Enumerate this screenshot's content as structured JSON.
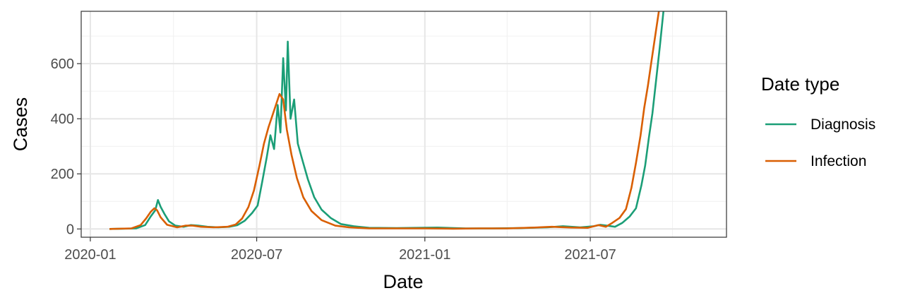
{
  "chart_data": {
    "type": "line",
    "xlabel": "Date",
    "ylabel": "Cases",
    "x_ticks": [
      "2020-01",
      "2020-07",
      "2021-01",
      "2021-07"
    ],
    "y_ticks": [
      0,
      200,
      400,
      600
    ],
    "xlim": [
      "2019-12-22",
      "2021-11-27"
    ],
    "ylim": [
      -30,
      790
    ],
    "grid": true,
    "legend": {
      "title": "Date type",
      "position": "right"
    },
    "series": [
      {
        "name": "Diagnosis",
        "color": "#1b9e77",
        "points": [
          [
            "2020-01-22",
            0
          ],
          [
            "2020-02-20",
            2
          ],
          [
            "2020-03-01",
            14
          ],
          [
            "2020-03-07",
            45
          ],
          [
            "2020-03-12",
            68
          ],
          [
            "2020-03-15",
            105
          ],
          [
            "2020-03-18",
            80
          ],
          [
            "2020-03-22",
            55
          ],
          [
            "2020-03-27",
            28
          ],
          [
            "2020-04-03",
            12
          ],
          [
            "2020-04-12",
            8
          ],
          [
            "2020-04-20",
            14
          ],
          [
            "2020-04-28",
            12
          ],
          [
            "2020-05-08",
            8
          ],
          [
            "2020-05-20",
            6
          ],
          [
            "2020-06-01",
            8
          ],
          [
            "2020-06-10",
            14
          ],
          [
            "2020-06-18",
            30
          ],
          [
            "2020-06-26",
            58
          ],
          [
            "2020-07-02",
            85
          ],
          [
            "2020-07-07",
            170
          ],
          [
            "2020-07-12",
            260
          ],
          [
            "2020-07-16",
            340
          ],
          [
            "2020-07-20",
            290
          ],
          [
            "2020-07-24",
            450
          ],
          [
            "2020-07-27",
            350
          ],
          [
            "2020-07-30",
            620
          ],
          [
            "2020-08-02",
            430
          ],
          [
            "2020-08-04",
            680
          ],
          [
            "2020-08-07",
            400
          ],
          [
            "2020-08-11",
            470
          ],
          [
            "2020-08-15",
            310
          ],
          [
            "2020-08-20",
            250
          ],
          [
            "2020-08-26",
            180
          ],
          [
            "2020-09-02",
            115
          ],
          [
            "2020-09-10",
            70
          ],
          [
            "2020-09-20",
            40
          ],
          [
            "2020-10-01",
            18
          ],
          [
            "2020-10-15",
            10
          ],
          [
            "2020-11-01",
            4
          ],
          [
            "2020-12-01",
            3
          ],
          [
            "2021-01-15",
            5
          ],
          [
            "2021-02-15",
            2
          ],
          [
            "2021-03-15",
            2
          ],
          [
            "2021-04-15",
            3
          ],
          [
            "2021-05-15",
            6
          ],
          [
            "2021-06-01",
            10
          ],
          [
            "2021-06-20",
            6
          ],
          [
            "2021-07-05",
            10
          ],
          [
            "2021-07-12",
            15
          ],
          [
            "2021-07-19",
            12
          ],
          [
            "2021-07-28",
            8
          ],
          [
            "2021-08-05",
            22
          ],
          [
            "2021-08-13",
            45
          ],
          [
            "2021-08-20",
            75
          ],
          [
            "2021-08-26",
            160
          ],
          [
            "2021-08-30",
            230
          ],
          [
            "2021-09-03",
            330
          ],
          [
            "2021-09-07",
            420
          ],
          [
            "2021-09-11",
            540
          ],
          [
            "2021-09-15",
            660
          ],
          [
            "2021-09-19",
            790
          ]
        ]
      },
      {
        "name": "Infection",
        "color": "#d95f02",
        "points": [
          [
            "2020-01-22",
            0
          ],
          [
            "2020-02-15",
            2
          ],
          [
            "2020-02-25",
            14
          ],
          [
            "2020-03-02",
            38
          ],
          [
            "2020-03-07",
            62
          ],
          [
            "2020-03-11",
            75
          ],
          [
            "2020-03-14",
            68
          ],
          [
            "2020-03-18",
            42
          ],
          [
            "2020-03-25",
            15
          ],
          [
            "2020-04-05",
            6
          ],
          [
            "2020-04-14",
            12
          ],
          [
            "2020-04-22",
            12
          ],
          [
            "2020-05-01",
            8
          ],
          [
            "2020-05-15",
            6
          ],
          [
            "2020-05-30",
            8
          ],
          [
            "2020-06-08",
            16
          ],
          [
            "2020-06-15",
            38
          ],
          [
            "2020-06-22",
            80
          ],
          [
            "2020-06-28",
            140
          ],
          [
            "2020-07-04",
            230
          ],
          [
            "2020-07-09",
            310
          ],
          [
            "2020-07-14",
            370
          ],
          [
            "2020-07-20",
            430
          ],
          [
            "2020-07-26",
            490
          ],
          [
            "2020-07-30",
            470
          ],
          [
            "2020-08-03",
            360
          ],
          [
            "2020-08-08",
            270
          ],
          [
            "2020-08-14",
            185
          ],
          [
            "2020-08-21",
            115
          ],
          [
            "2020-08-30",
            65
          ],
          [
            "2020-09-10",
            32
          ],
          [
            "2020-09-25",
            12
          ],
          [
            "2020-10-10",
            6
          ],
          [
            "2020-11-01",
            2
          ],
          [
            "2021-01-01",
            2
          ],
          [
            "2021-02-01",
            1
          ],
          [
            "2021-03-01",
            2
          ],
          [
            "2021-04-01",
            2
          ],
          [
            "2021-05-01",
            5
          ],
          [
            "2021-05-20",
            8
          ],
          [
            "2021-06-10",
            5
          ],
          [
            "2021-06-28",
            4
          ],
          [
            "2021-07-10",
            14
          ],
          [
            "2021-07-18",
            8
          ],
          [
            "2021-07-25",
            22
          ],
          [
            "2021-08-02",
            40
          ],
          [
            "2021-08-09",
            72
          ],
          [
            "2021-08-15",
            150
          ],
          [
            "2021-08-20",
            240
          ],
          [
            "2021-08-25",
            340
          ],
          [
            "2021-08-29",
            440
          ],
          [
            "2021-09-02",
            520
          ],
          [
            "2021-09-06",
            610
          ],
          [
            "2021-09-10",
            700
          ],
          [
            "2021-09-14",
            790
          ]
        ]
      }
    ]
  }
}
